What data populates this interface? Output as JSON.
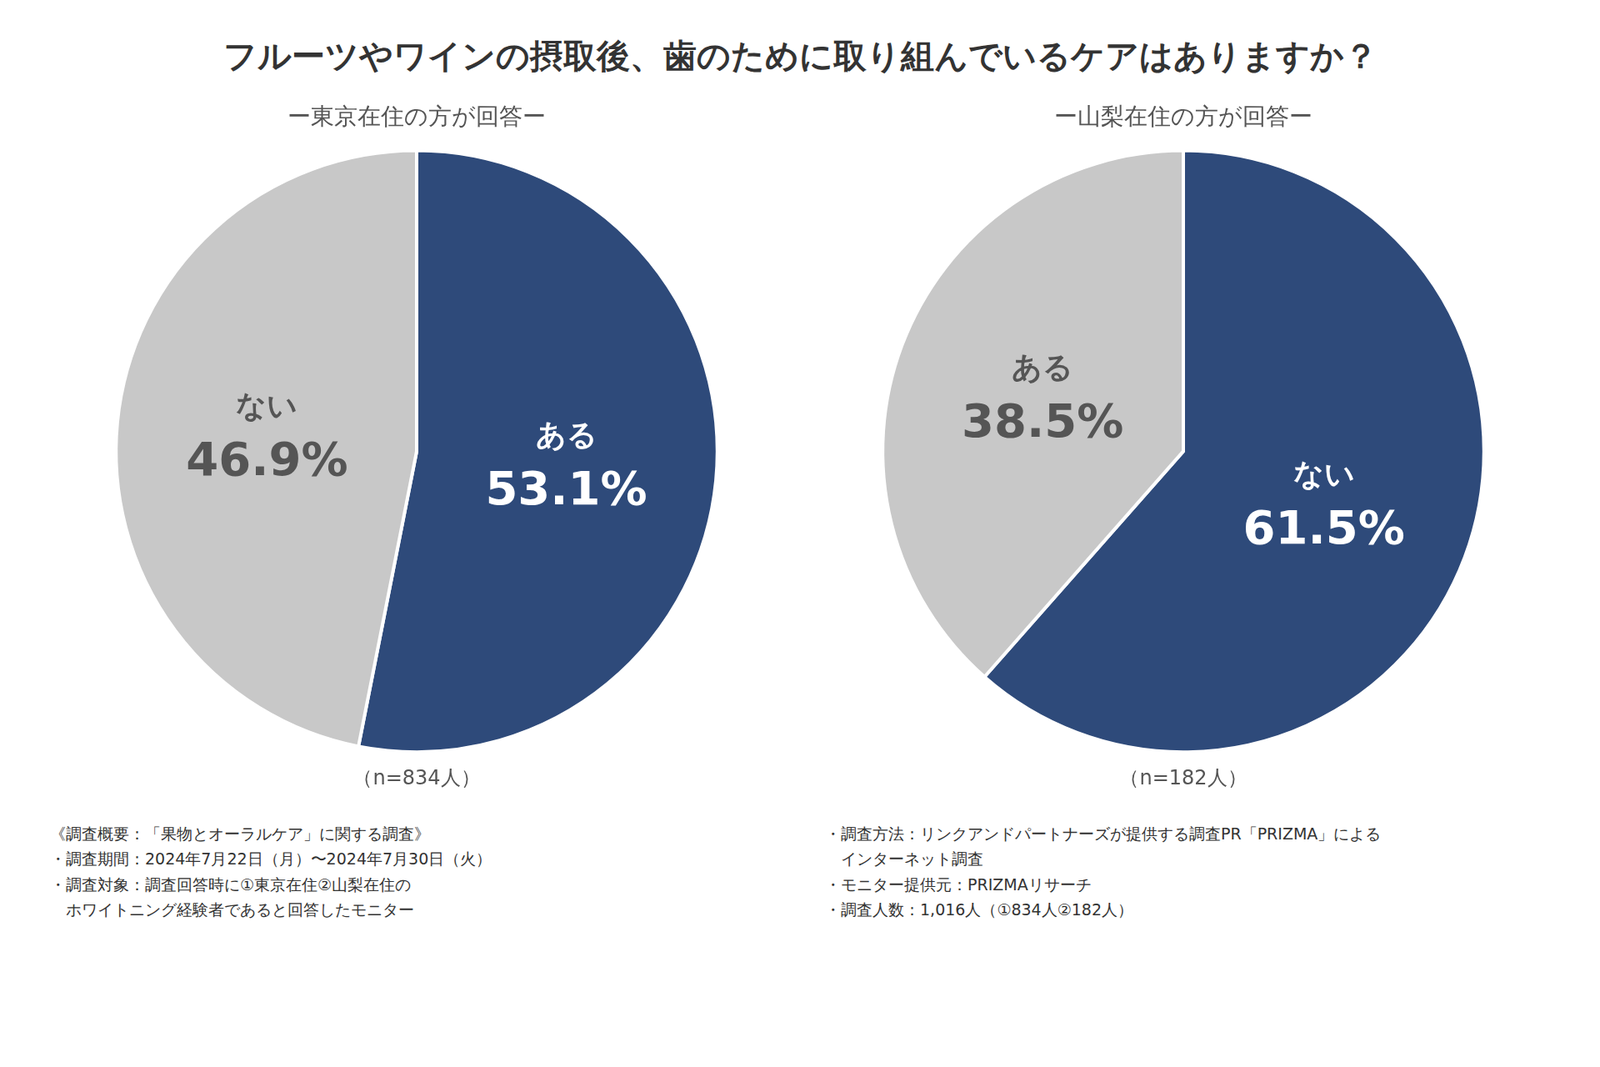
{
  "title": "フルーツやワインの摂取後、歯のために取り組んでいるケアはありますか？",
  "chart_data": [
    {
      "type": "pie",
      "title": "ー東京在住の方が回答ー",
      "categories": [
        "ある",
        "ない"
      ],
      "values": [
        53.1,
        46.9
      ],
      "value_labels": [
        "53.1%",
        "46.9%"
      ],
      "colors": [
        "#2e4a7a",
        "#c8c8c8"
      ],
      "data_labels": true,
      "legend": false,
      "annotations": [
        "（n=834人）"
      ]
    },
    {
      "type": "pie",
      "title": "ー山梨在住の方が回答ー",
      "categories": [
        "ない",
        "ある"
      ],
      "values": [
        61.5,
        38.5
      ],
      "value_labels": [
        "61.5%",
        "38.5%"
      ],
      "colors": [
        "#2e4a7a",
        "#c8c8c8"
      ],
      "data_labels": true,
      "legend": false,
      "annotations": [
        "（n=182人）"
      ]
    }
  ],
  "annotations": [
    "《調査概要：「果物とオーラルケア」に関する調査》",
    "・調査期間：2024年7月22日（月）〜2024年7月30日（火）",
    "・調査対象：調査回答時に①東京在住②山梨在住の",
    "　ホワイトニング経験者であると回答したモニター",
    "・調査方法：リンクアンドパートナーズが提供する調査PR「PRIZMA」による",
    "　インターネット調査",
    "・モニター提供元：PRIZMAリサーチ",
    "・調査人数：1,016人（①834人②182人）"
  ]
}
